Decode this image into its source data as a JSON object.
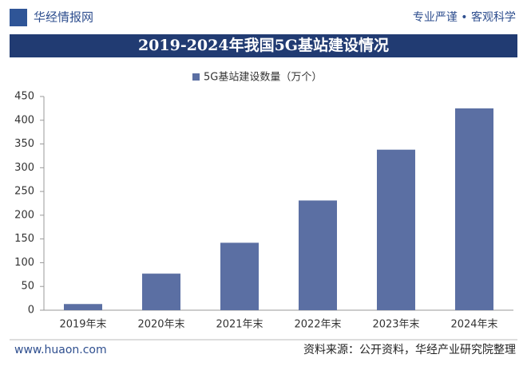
{
  "header": {
    "brand": "华经情报网",
    "slogan": "专业严谨 • 客观科学"
  },
  "chart_data": {
    "type": "bar",
    "title": "2019-2024年我国5G基站建设情况",
    "categories": [
      "2019年末",
      "2020年末",
      "2021年末",
      "2022年末",
      "2023年末",
      "2024年末"
    ],
    "series": [
      {
        "name": "5G基站建设数量（万个）",
        "color": "#5b6fa3",
        "values": [
          13,
          77,
          142,
          231,
          338,
          425
        ]
      }
    ],
    "ylim": [
      0,
      450
    ],
    "yticks": [
      0,
      50,
      100,
      150,
      200,
      250,
      300,
      350,
      400,
      450
    ],
    "grid": false,
    "legend": "top"
  },
  "footer": {
    "website": "www.huaon.com",
    "source": "资料来源：公开资料，华经产业研究院整理"
  }
}
